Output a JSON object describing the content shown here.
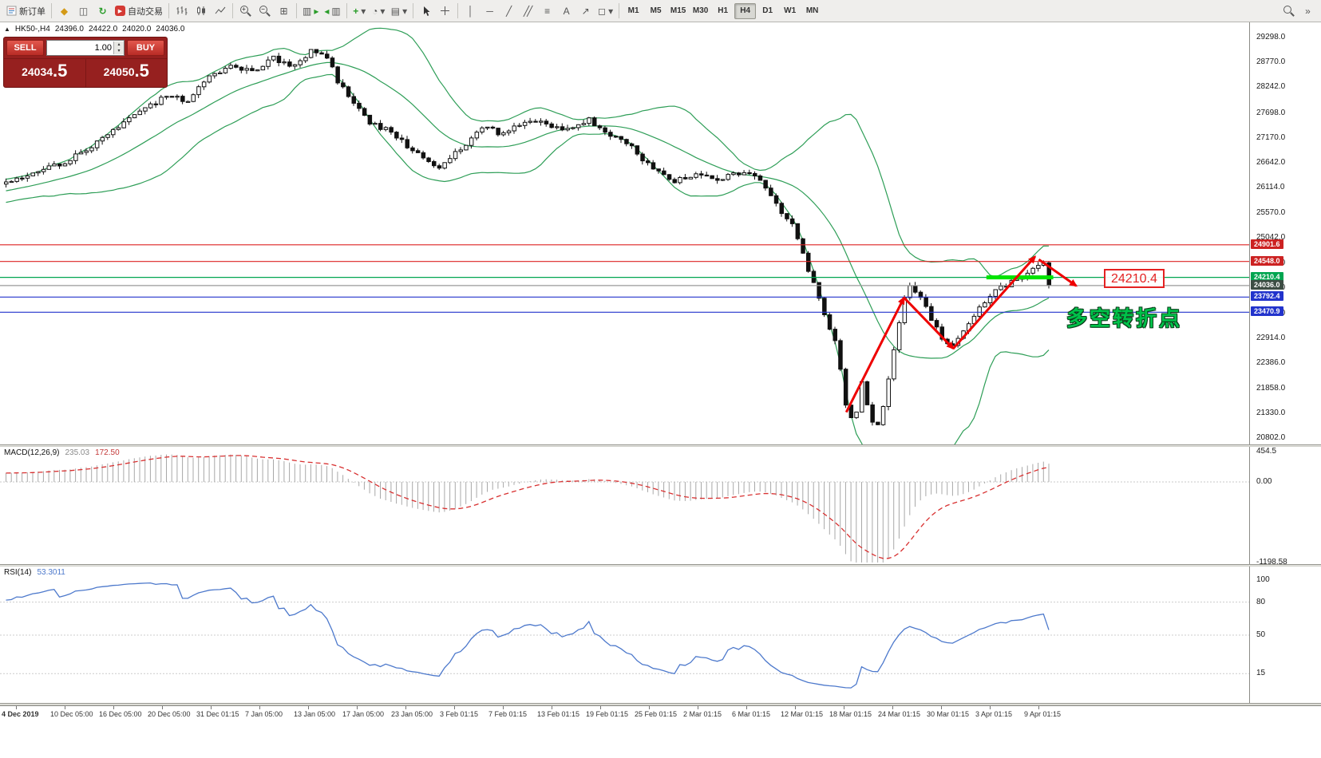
{
  "toolbar": {
    "new_order": "新订单",
    "autotrading": "自动交易",
    "timeframes": [
      "M1",
      "M5",
      "M15",
      "M30",
      "H1",
      "H4",
      "D1",
      "W1",
      "MN"
    ],
    "active_timeframe": "H4"
  },
  "icons": {
    "panel_toggle": "▲",
    "metaeditor": "◆",
    "charts_grid": "◫",
    "refresh": "↻",
    "play": "▶",
    "tile": "⊞",
    "chart_box": "▥",
    "arrow_right": "▸",
    "arrow_left": "◂",
    "plus": "+",
    "minus": "−",
    "clock": "◔",
    "template": "▤",
    "caret": "▾",
    "vline": "│",
    "hline": "─",
    "trend": "╱",
    "channel": "╱╱",
    "fibo": "≡",
    "text_tool": "A",
    "arrows_tool": "↗",
    "shapes": "◻",
    "crosshair": "+",
    "overflow": "»",
    "spin_up": "▴",
    "spin_down": "▾"
  },
  "trade_panel": {
    "sell_label": "SELL",
    "buy_label": "BUY",
    "volume": "1.00",
    "sell_price": "24034",
    "sell_price_frac": ".5",
    "buy_price": "24050",
    "buy_price_frac": ".5"
  },
  "annotations": {
    "price_callout": "24210.4",
    "cn_note": "多空转折点",
    "zigzag_color": "#ee0000",
    "zigzag": [
      {
        "from": [
          157.5,
          21350
        ],
        "to": [
          168.3,
          23780
        ]
      },
      {
        "from": [
          168.3,
          23780
        ],
        "to": [
          177.5,
          22700
        ]
      },
      {
        "from": [
          177.5,
          22700
        ],
        "to": [
          192.8,
          24650
        ]
      },
      {
        "from": [
          193.5,
          24590
        ],
        "to": [
          200.5,
          24030
        ]
      }
    ],
    "support_segment": {
      "from": [
        183.7,
        24210.4
      ],
      "to": [
        196.2,
        24210.4
      ],
      "color": "#00e400",
      "width": 5
    }
  },
  "chart_data": {
    "type": "candlestick",
    "symbol": "HK50-",
    "timeframe": "H4",
    "header": {
      "symbol_period": "HK50-,H4",
      "open": "24396.0",
      "high": "24422.0",
      "low": "24020.0",
      "close": "24036.0"
    },
    "last_close": 24036.0,
    "candle_count": 196,
    "y_range": [
      20802.0,
      29298.0
    ],
    "y_ticks": [
      29298.0,
      28770.0,
      28242.0,
      27698.0,
      27170.0,
      26642.0,
      26114.0,
      25570.0,
      25042.0,
      24514.0,
      23986.0,
      23442.0,
      22914.0,
      22386.0,
      21858.0,
      21330.0,
      20802.0
    ],
    "price_path": [
      [
        -30,
        25500
      ],
      [
        -15,
        25950
      ],
      [
        0,
        26250
      ],
      [
        6,
        26450
      ],
      [
        12,
        26700
      ],
      [
        18,
        27150
      ],
      [
        24,
        27650
      ],
      [
        30,
        28050
      ],
      [
        34,
        27950
      ],
      [
        38,
        28450
      ],
      [
        42,
        28750
      ],
      [
        46,
        28550
      ],
      [
        50,
        28850
      ],
      [
        54,
        28700
      ],
      [
        57,
        29000
      ],
      [
        60,
        28900
      ],
      [
        62,
        28350
      ],
      [
        65,
        27950
      ],
      [
        68,
        27500
      ],
      [
        72,
        27300
      ],
      [
        77,
        26800
      ],
      [
        81,
        26550
      ],
      [
        85,
        26950
      ],
      [
        89,
        27400
      ],
      [
        93,
        27250
      ],
      [
        97,
        27550
      ],
      [
        101,
        27450
      ],
      [
        105,
        27350
      ],
      [
        109,
        27550
      ],
      [
        113,
        27250
      ],
      [
        117,
        26950
      ],
      [
        121,
        26500
      ],
      [
        125,
        26250
      ],
      [
        129,
        26420
      ],
      [
        133,
        26300
      ],
      [
        137,
        26420
      ],
      [
        141,
        26300
      ],
      [
        144,
        25750
      ],
      [
        147,
        25300
      ],
      [
        149,
        24700
      ],
      [
        151,
        24050
      ],
      [
        153,
        23450
      ],
      [
        155,
        22850
      ],
      [
        156,
        22250
      ],
      [
        157,
        21500
      ],
      [
        158,
        21200
      ],
      [
        159,
        21350
      ],
      [
        160,
        22000
      ],
      [
        161,
        21500
      ],
      [
        162,
        21100
      ],
      [
        163,
        21050
      ],
      [
        164,
        21500
      ],
      [
        165,
        22100
      ],
      [
        166,
        22700
      ],
      [
        167,
        23300
      ],
      [
        168,
        23800
      ],
      [
        169,
        24050
      ],
      [
        171,
        23800
      ],
      [
        173,
        23300
      ],
      [
        175,
        22950
      ],
      [
        177,
        22750
      ],
      [
        179,
        23050
      ],
      [
        181,
        23400
      ],
      [
        183,
        23700
      ],
      [
        185,
        23900
      ],
      [
        187,
        24050
      ],
      [
        189,
        24150
      ],
      [
        191,
        24300
      ],
      [
        193,
        24420
      ],
      [
        194,
        24500
      ],
      [
        195,
        24036
      ]
    ],
    "bollinger": {
      "period": 20,
      "deviation": 2,
      "color": "#2e9e57"
    },
    "horizontal_lines": [
      {
        "value": 24901.6,
        "color": "#dd2222",
        "tag_bg": "#cc2222"
      },
      {
        "value": 24548.0,
        "color": "#dd2222",
        "tag_bg": "#cc2222"
      },
      {
        "value": 24210.4,
        "color": "#00a550",
        "tag_bg": "#00a550"
      },
      {
        "value": 24036.0,
        "color": "#9a9a9a",
        "tag_bg": "#3d4d44"
      },
      {
        "value": 23792.4,
        "color": "#2233cc",
        "tag_bg": "#2233cc"
      },
      {
        "value": 23470.9,
        "color": "#2233cc",
        "tag_bg": "#2233cc"
      }
    ],
    "x_labels": [
      "4 Dec 2019",
      "10 Dec 05:00",
      "16 Dec 05:00",
      "20 Dec 05:00",
      "31 Dec 01:15",
      "7 Jan 05:00",
      "13 Jan 05:00",
      "17 Jan 05:00",
      "23 Jan 05:00",
      "3 Feb 01:15",
      "7 Feb 01:15",
      "13 Feb 01:15",
      "19 Feb 01:15",
      "25 Feb 01:15",
      "2 Mar 01:15",
      "6 Mar 01:15",
      "12 Mar 01:15",
      "18 Mar 01:15",
      "24 Mar 01:15",
      "30 Mar 01:15",
      "3 Apr 01:15",
      "9 Apr 01:15"
    ],
    "macd": {
      "name": "MACD(12,26,9)",
      "main_value": "235.03",
      "signal_value": "172.50",
      "params": [
        12,
        26,
        9
      ],
      "ticks": [
        {
          "label": "454.5",
          "value": 454.5
        },
        {
          "label": "0.00",
          "value": 0
        },
        {
          "label": "-1198.58",
          "value": -1198.58
        }
      ],
      "histogram_color": "#a8a8a8",
      "signal_color": "#d83030"
    },
    "rsi": {
      "name": "RSI(14)",
      "value": "53.3011",
      "period": 14,
      "ticks": [
        {
          "label": "100",
          "value": 100
        },
        {
          "label": "80",
          "value": 80
        },
        {
          "label": "50",
          "value": 50
        },
        {
          "label": "15",
          "value": 15
        }
      ],
      "levels": [
        80,
        50,
        15
      ],
      "color": "#4d79cc"
    }
  }
}
